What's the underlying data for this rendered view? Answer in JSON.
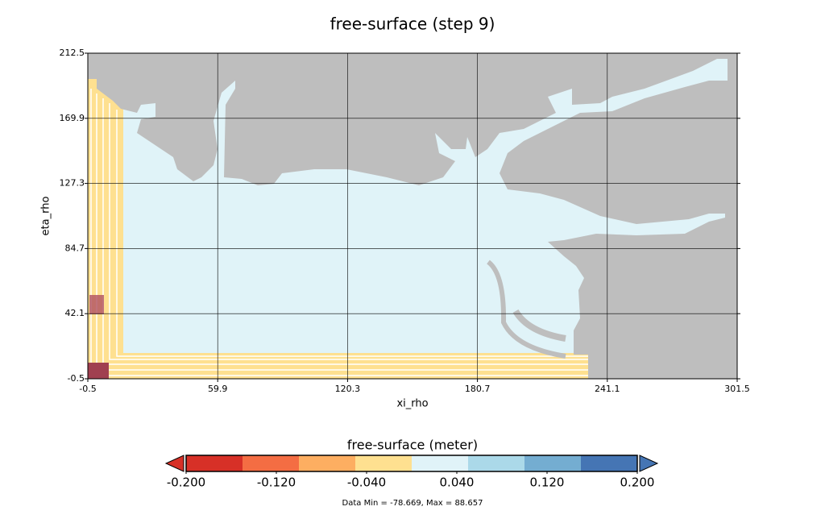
{
  "chart_data": {
    "type": "contour",
    "title": "free-surface (step 9)",
    "x_label": "xi_rho",
    "y_label": "eta_rho",
    "xlim": [
      -0.5,
      301.5
    ],
    "ylim": [
      -0.5,
      212.5
    ],
    "xticks": [
      -0.5,
      59.9,
      120.3,
      180.7,
      241.1,
      301.5
    ],
    "yticks": [
      -0.5,
      42.1,
      84.7,
      127.3,
      169.9,
      212.5
    ],
    "grid": true,
    "colorbar": {
      "title": "free-surface (meter)",
      "levels": [
        -0.2,
        -0.15,
        -0.1,
        -0.05,
        0,
        0.05,
        0.1,
        0.15,
        0.2
      ],
      "colors": [
        "#d73027",
        "#f46d43",
        "#fdae61",
        "#fee090",
        "#e0f3f8",
        "#abd9e9",
        "#74add1",
        "#4575b4"
      ],
      "extend": "both",
      "ticks": [
        {
          "value": -0.2,
          "label": "-0.200"
        },
        {
          "value": -0.12,
          "label": "-0.120"
        },
        {
          "value": -0.04,
          "label": "-0.040"
        },
        {
          "value": 0.04,
          "label": "0.040"
        },
        {
          "value": 0.12,
          "label": "0.120"
        },
        {
          "value": 0.2,
          "label": "0.200"
        }
      ]
    },
    "footnote": "Data Min = -78.669, Max = 88.657"
  }
}
